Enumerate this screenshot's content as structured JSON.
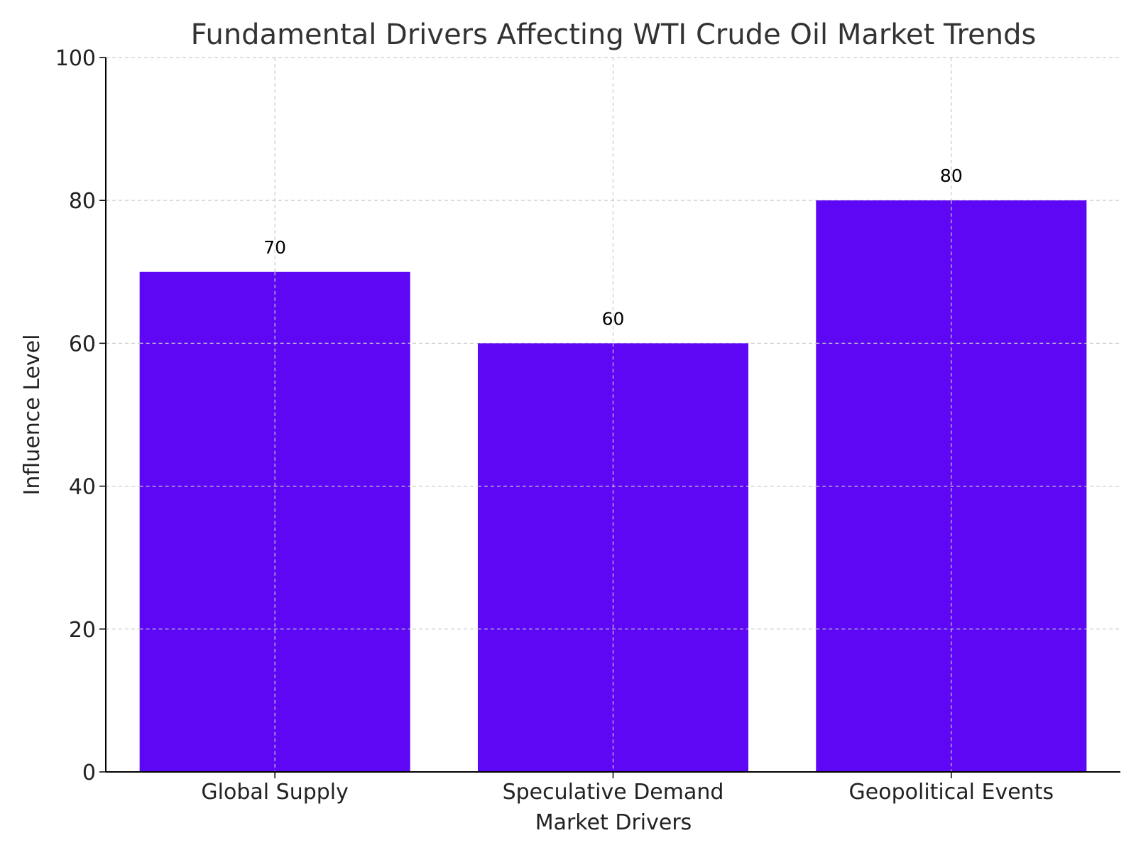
{
  "chart_data": {
    "type": "bar",
    "title": "Fundamental Drivers Affecting WTI Crude Oil Market Trends",
    "xlabel": "Market Drivers",
    "ylabel": "Influence Level",
    "categories": [
      "Global Supply",
      "Speculative Demand",
      "Geopolitical Events"
    ],
    "values": [
      70,
      60,
      80
    ],
    "data_labels": [
      "70",
      "60",
      "80"
    ],
    "ylim": [
      0,
      100
    ],
    "yticks": [
      0,
      20,
      40,
      60,
      80,
      100
    ],
    "ytick_labels": [
      "0",
      "20",
      "40",
      "60",
      "80",
      "100"
    ],
    "grid": true,
    "legend": false,
    "colors": {
      "bar": "#5d07f5",
      "grid": "#cccccc",
      "axis": "#000000",
      "text": "#333333"
    }
  }
}
